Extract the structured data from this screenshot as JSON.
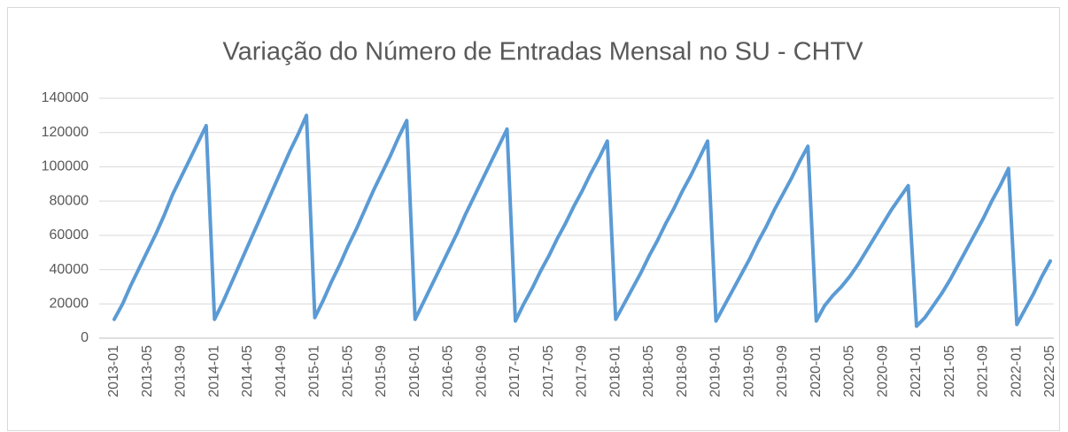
{
  "chart_data": {
    "type": "line",
    "title": "Variação do Número de Entradas Mensal no SU - CHTV",
    "categories": [
      "2013-01",
      null,
      null,
      null,
      "2013-05",
      null,
      null,
      null,
      "2013-09",
      null,
      null,
      null,
      "2014-01",
      null,
      null,
      null,
      "2014-05",
      null,
      null,
      null,
      "2014-09",
      null,
      null,
      null,
      "2015-01",
      null,
      null,
      null,
      "2015-05",
      null,
      null,
      null,
      "2015-09",
      null,
      null,
      null,
      "2016-01",
      null,
      null,
      null,
      "2016-05",
      null,
      null,
      null,
      "2016-09",
      null,
      null,
      null,
      "2017-01",
      null,
      null,
      null,
      "2017-05",
      null,
      null,
      null,
      "2017-09",
      null,
      null,
      null,
      "2018-01",
      null,
      null,
      null,
      "2018-05",
      null,
      null,
      null,
      "2018-09",
      null,
      null,
      null,
      "2019-01",
      null,
      null,
      null,
      "2019-05",
      null,
      null,
      null,
      "2019-09",
      null,
      null,
      null,
      "2020-01",
      null,
      null,
      null,
      "2020-05",
      null,
      null,
      null,
      "2020-09",
      null,
      null,
      null,
      "2021-01",
      null,
      null,
      null,
      "2021-05",
      null,
      null,
      null,
      "2021-09",
      null,
      null,
      null,
      "2022-01",
      null,
      null,
      null,
      "2022-05"
    ],
    "values": [
      11000,
      20000,
      31000,
      41000,
      51000,
      61000,
      72000,
      84000,
      94000,
      104000,
      114000,
      124000,
      11000,
      21000,
      32000,
      43000,
      54000,
      65000,
      76000,
      87000,
      98000,
      109000,
      119000,
      130000,
      12000,
      22000,
      33000,
      43000,
      54000,
      64000,
      75000,
      86000,
      96000,
      106000,
      117000,
      127000,
      11000,
      21000,
      31000,
      41000,
      51000,
      61000,
      72000,
      82000,
      92000,
      102000,
      112000,
      122000,
      10000,
      20000,
      29000,
      39000,
      48000,
      58000,
      67000,
      77000,
      86000,
      96000,
      105000,
      115000,
      11000,
      20000,
      29000,
      38000,
      48000,
      57000,
      67000,
      76000,
      86000,
      95000,
      105000,
      115000,
      10000,
      19000,
      28000,
      37000,
      46000,
      56000,
      65000,
      75000,
      84000,
      93000,
      103000,
      112000,
      10000,
      19000,
      25000,
      30000,
      36000,
      43000,
      51000,
      59000,
      67000,
      75000,
      82000,
      89000,
      7000,
      12000,
      19000,
      26000,
      34000,
      43000,
      52000,
      61000,
      70000,
      80000,
      89000,
      99000,
      8000,
      17000,
      26000,
      36000,
      45000
    ],
    "color": "#5b9bd5",
    "ylim": [
      0,
      140000
    ],
    "yticks": [
      0,
      20000,
      40000,
      60000,
      80000,
      100000,
      120000,
      140000
    ],
    "grid": true
  }
}
